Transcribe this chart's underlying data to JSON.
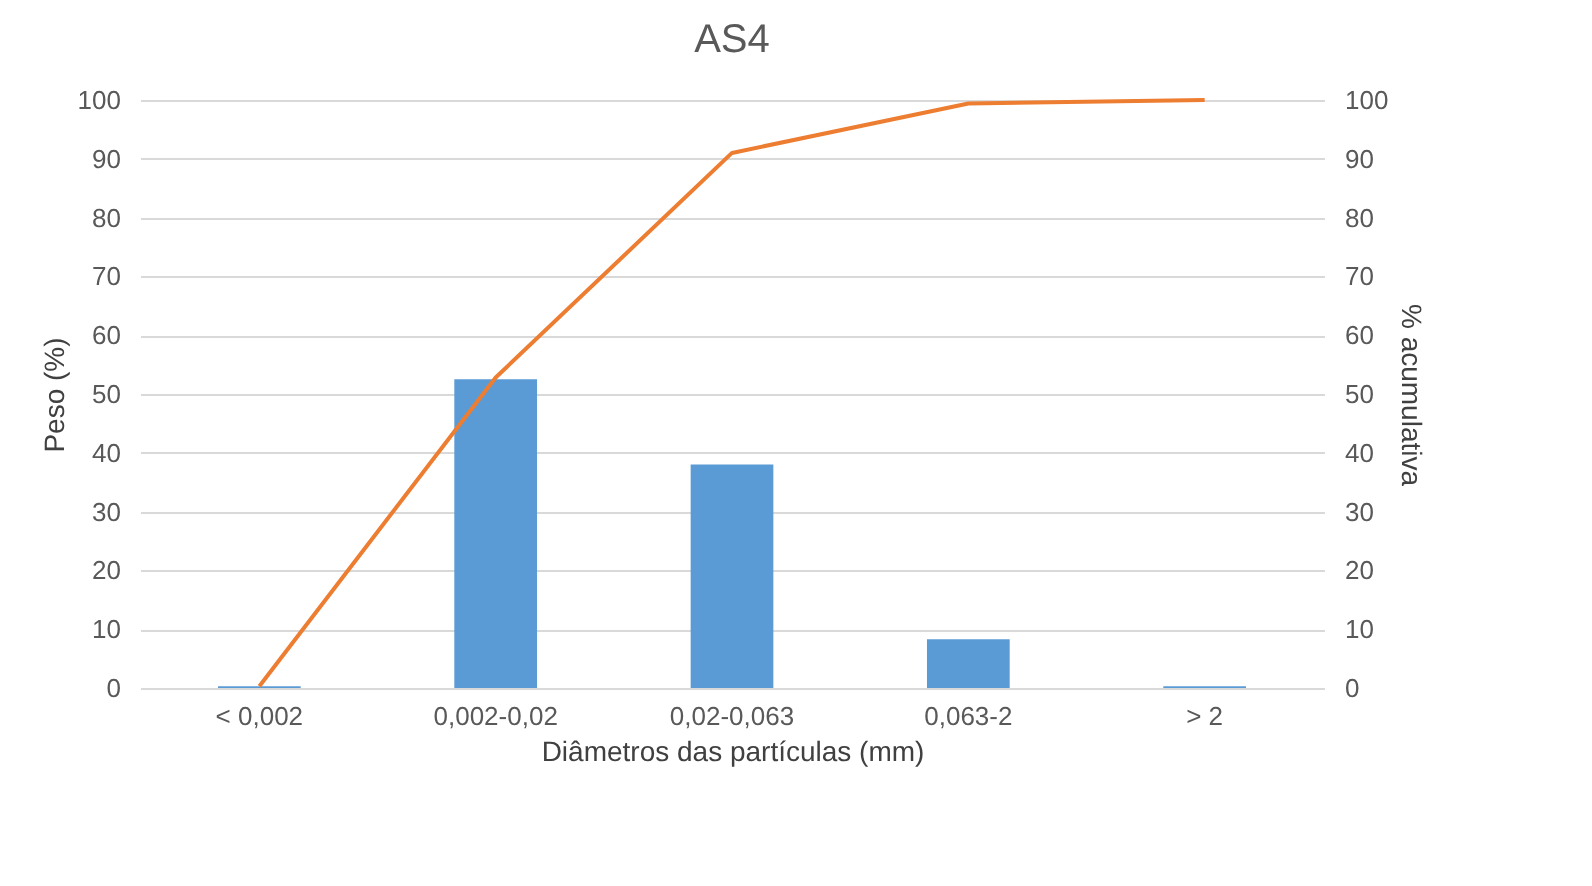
{
  "chart_data": {
    "type": "bar",
    "title": "AS4",
    "xlabel": "Diâmetros das partículas (mm)",
    "ylabel": "Peso (%)",
    "y2label": "% acumulativa",
    "categories": [
      "< 0,002",
      "0,002-0,02",
      "0,02-0,063",
      "0,063-2",
      "> 2"
    ],
    "series": [
      {
        "color": "#5b9bd5",
        "values": [
          0.3,
          52.5,
          38,
          8.3,
          0.3
        ]
      },
      {
        "type": "line",
        "axis": "y2",
        "color": "#ed7d31",
        "values": [
          0.3,
          52.8,
          91,
          99.4,
          100
        ]
      }
    ],
    "ylim": [
      0,
      100
    ],
    "yticks": [
      0,
      10,
      20,
      30,
      40,
      50,
      60,
      70,
      80,
      90,
      100
    ],
    "y2lim": [
      0,
      100
    ],
    "y2ticks": [
      0,
      10,
      20,
      30,
      40,
      50,
      60,
      70,
      80,
      90,
      100
    ],
    "grid": "y"
  }
}
